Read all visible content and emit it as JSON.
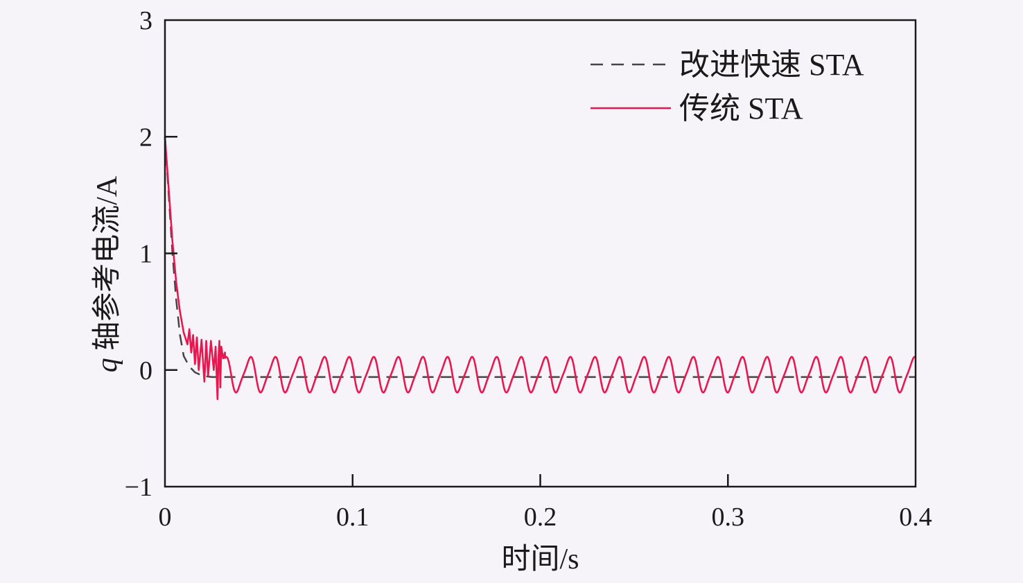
{
  "chart_data": {
    "type": "line",
    "xlabel": "时间/s",
    "ylabel_var": "q",
    "ylabel": " 轴参考电流/A",
    "xlim": [
      0,
      0.4
    ],
    "ylim": [
      -1,
      3
    ],
    "x_ticks": [
      "0",
      "0.1",
      "0.2",
      "0.3",
      "0.4"
    ],
    "y_ticks": [
      "−1",
      "0",
      "1",
      "2",
      "3"
    ],
    "legend_position": "top-right",
    "grid": false,
    "series": [
      {
        "name": "改进快速 STA",
        "color": "#444444",
        "style": "dashed",
        "x": [
          0,
          0.002,
          0.004,
          0.006,
          0.008,
          0.01,
          0.013,
          0.016,
          0.02,
          0.025,
          0.03,
          0.04,
          0.1,
          0.2,
          0.3,
          0.4
        ],
        "y": [
          2.0,
          1.5,
          1.0,
          0.6,
          0.3,
          0.12,
          0.03,
          -0.02,
          -0.05,
          -0.06,
          -0.06,
          -0.06,
          -0.06,
          -0.06,
          -0.06,
          -0.06
        ]
      },
      {
        "name": "传统 STA",
        "color": "#e8174f",
        "style": "solid",
        "transient_x": [
          0,
          0.002,
          0.004,
          0.006,
          0.008,
          0.01,
          0.012,
          0.013,
          0.014,
          0.015,
          0.016,
          0.017,
          0.018,
          0.0195,
          0.021,
          0.022,
          0.023,
          0.0245,
          0.026,
          0.027,
          0.028,
          0.0285,
          0.029,
          0.0295,
          0.03,
          0.031,
          0.032
        ],
        "transient_y": [
          2.0,
          1.55,
          1.1,
          0.75,
          0.5,
          0.32,
          0.22,
          0.35,
          0.15,
          0.3,
          0.05,
          0.28,
          0.0,
          0.26,
          -0.1,
          0.25,
          -0.05,
          0.25,
          0.0,
          0.2,
          -0.25,
          0.1,
          0.25,
          -0.15,
          0.2,
          0.1,
          0.15
        ],
        "oscillation": {
          "start": 0.032,
          "end": 0.4,
          "period": 0.0131,
          "offset": -0.04,
          "amplitude": 0.15
        }
      }
    ]
  }
}
